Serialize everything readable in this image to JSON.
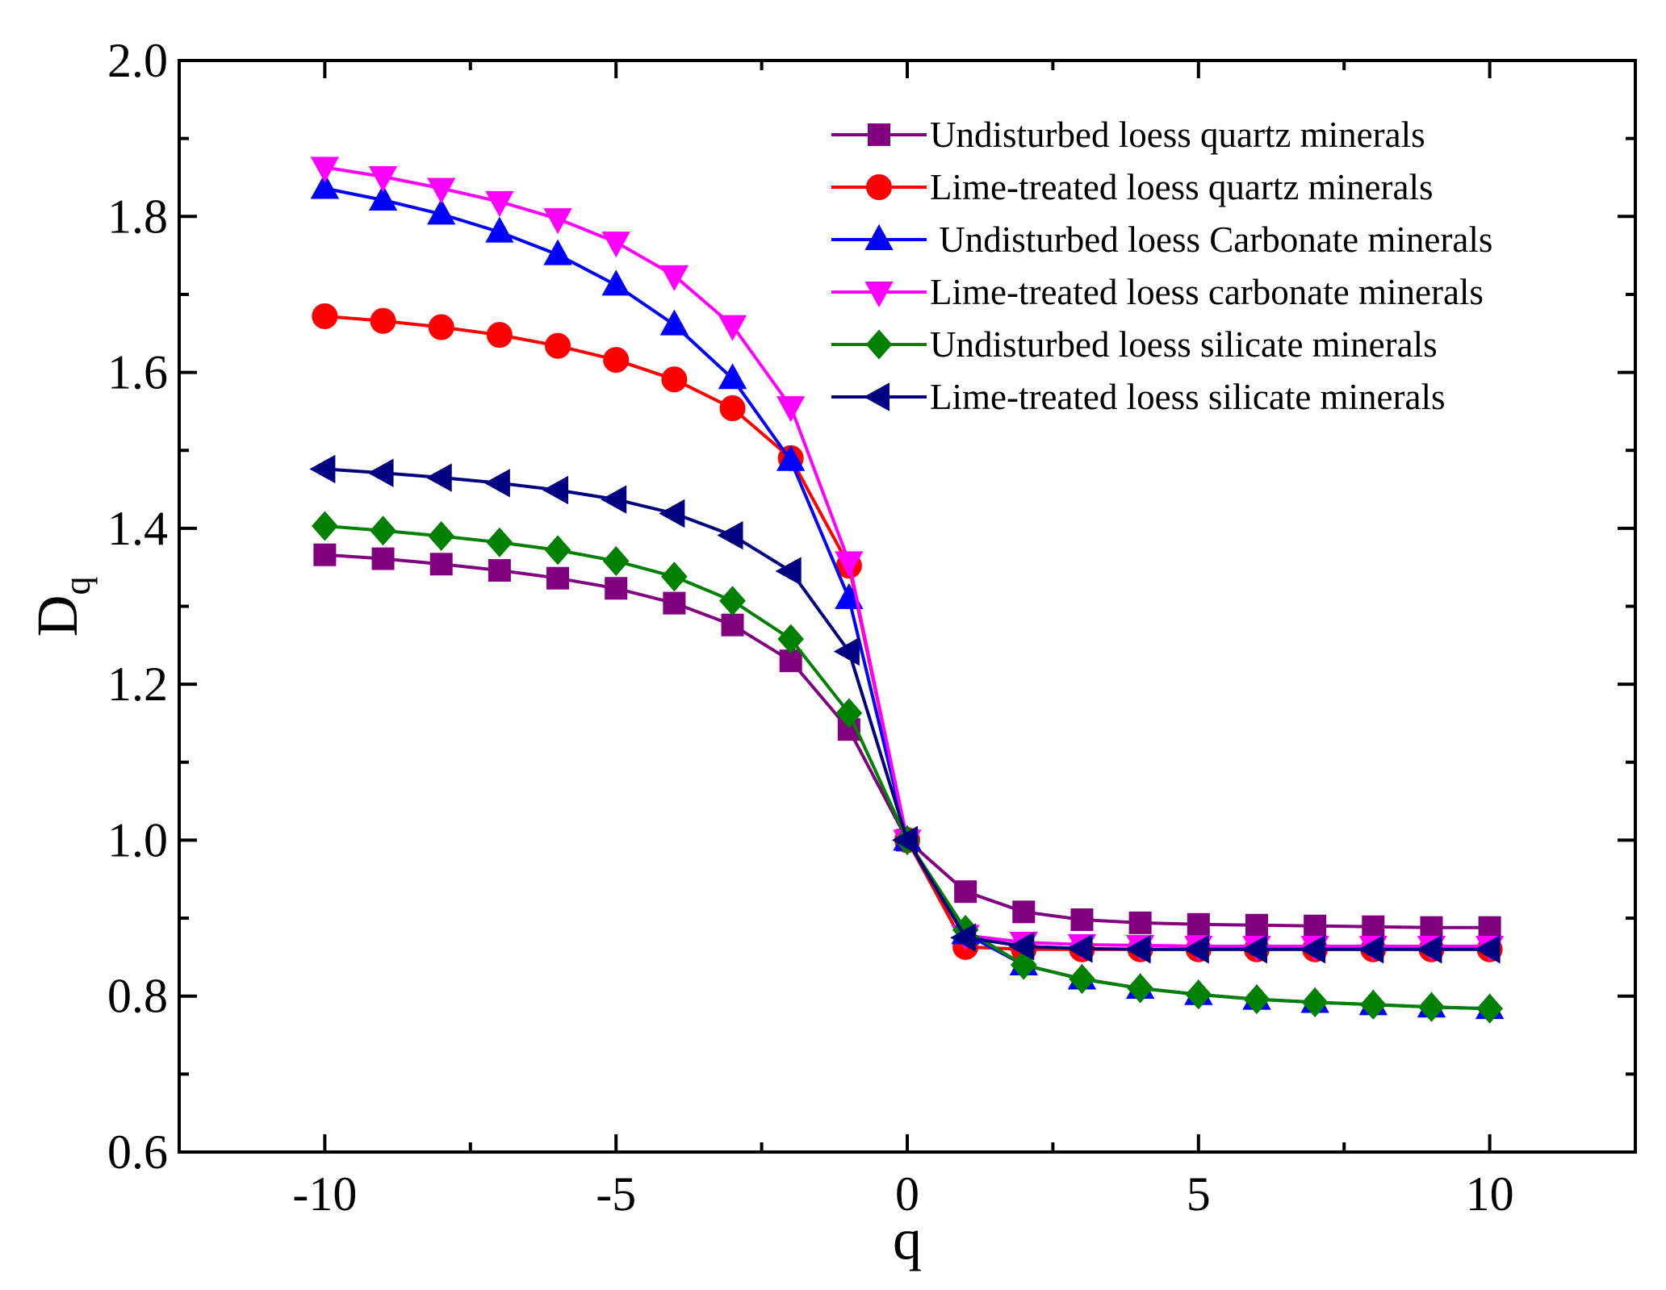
{
  "chart_data": {
    "type": "line",
    "title": "",
    "xlabel": "q",
    "ylabel_main": "D",
    "ylabel_sub": "q",
    "xlim": [
      -12.5,
      12.5
    ],
    "ylim": [
      0.6,
      2.0
    ],
    "x_ticks": [
      -10,
      -5,
      0,
      5,
      10
    ],
    "x_tick_labels": [
      "-10",
      "-5",
      "0",
      "5",
      "10"
    ],
    "y_ticks": [
      0.6,
      0.8,
      1.0,
      1.2,
      1.4,
      1.6,
      1.8,
      2.0
    ],
    "y_tick_labels": [
      "0.6",
      "0.8",
      "1.0",
      "1.2",
      "1.4",
      "1.6",
      "1.8",
      "2.0"
    ],
    "grid": false,
    "legend_position": "top-right",
    "x": [
      -10,
      -9,
      -8,
      -7,
      -6,
      -5,
      -4,
      -3,
      -2,
      -1,
      0,
      1,
      2,
      3,
      4,
      5,
      6,
      7,
      8,
      9,
      10
    ],
    "series": [
      {
        "name": "Undisturbed loess quartz minerals",
        "color": "#800080",
        "marker": "square",
        "values": [
          1.366,
          1.361,
          1.354,
          1.346,
          1.336,
          1.323,
          1.304,
          1.276,
          1.23,
          1.142,
          1.0,
          0.934,
          0.908,
          0.898,
          0.894,
          0.892,
          0.891,
          0.89,
          0.889,
          0.888,
          0.888
        ]
      },
      {
        "name": "Lime-treated loess quartz minerals",
        "color": "#ff0000",
        "marker": "circle",
        "values": [
          1.672,
          1.666,
          1.658,
          1.648,
          1.634,
          1.616,
          1.591,
          1.554,
          1.49,
          1.352,
          1.0,
          0.863,
          0.86,
          0.86,
          0.86,
          0.86,
          0.86,
          0.86,
          0.86,
          0.86,
          0.86
        ]
      },
      {
        "name": " Undisturbed loess Carbonate minerals",
        "color": "#0000ff",
        "marker": "triangle-up",
        "values": [
          1.836,
          1.821,
          1.803,
          1.78,
          1.751,
          1.712,
          1.661,
          1.592,
          1.487,
          1.31,
          1.0,
          0.88,
          0.84,
          0.822,
          0.81,
          0.802,
          0.796,
          0.792,
          0.789,
          0.786,
          0.784
        ]
      },
      {
        "name": "Lime-treated loess carbonate minerals",
        "color": "#ff00ff",
        "marker": "triangle-down",
        "values": [
          1.863,
          1.851,
          1.836,
          1.819,
          1.797,
          1.767,
          1.724,
          1.66,
          1.556,
          1.357,
          1.0,
          0.878,
          0.869,
          0.866,
          0.865,
          0.864,
          0.864,
          0.864,
          0.864,
          0.864,
          0.864
        ]
      },
      {
        "name": "Undisturbed loess silicate minerals",
        "color": "#008000",
        "marker": "diamond",
        "values": [
          1.403,
          1.397,
          1.39,
          1.382,
          1.372,
          1.358,
          1.338,
          1.307,
          1.258,
          1.163,
          1.0,
          0.885,
          0.84,
          0.822,
          0.81,
          0.802,
          0.796,
          0.792,
          0.789,
          0.786,
          0.784
        ]
      },
      {
        "name": "Lime-treated loess silicate minerals",
        "color": "#000080",
        "marker": "triangle-left",
        "values": [
          1.476,
          1.471,
          1.465,
          1.458,
          1.449,
          1.437,
          1.419,
          1.391,
          1.345,
          1.242,
          1.0,
          0.875,
          0.864,
          0.861,
          0.86,
          0.86,
          0.86,
          0.86,
          0.86,
          0.86,
          0.86
        ]
      }
    ]
  }
}
